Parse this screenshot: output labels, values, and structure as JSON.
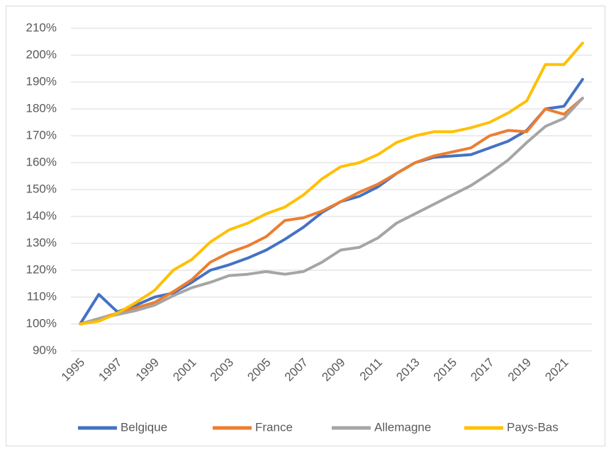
{
  "chart_data": {
    "type": "line",
    "categories": [
      "1995",
      null,
      "1997",
      null,
      "1999",
      null,
      "2001",
      null,
      "2003",
      null,
      "2005",
      null,
      "2007",
      null,
      "2009",
      null,
      "2011",
      null,
      "2013",
      null,
      "2015",
      null,
      "2017",
      null,
      "2019",
      null,
      "2021",
      null
    ],
    "series": [
      {
        "name": "Belgique",
        "color": "#4472c4",
        "values": [
          100,
          111,
          104.5,
          107,
          110,
          111.5,
          115.5,
          120,
          122,
          124.5,
          127.5,
          131.5,
          136,
          141.5,
          145.5,
          147.5,
          151,
          156,
          160,
          162,
          162.5,
          163,
          165.5,
          168,
          172,
          180,
          181,
          191
        ]
      },
      {
        "name": "France",
        "color": "#ed7d31",
        "values": [
          100,
          102,
          104,
          106,
          108,
          112,
          116.5,
          123,
          126.5,
          129,
          132.5,
          138.5,
          139.5,
          142,
          145.5,
          149,
          152,
          156,
          160,
          162.5,
          164,
          165.5,
          170,
          172,
          171.5,
          180,
          178,
          184
        ]
      },
      {
        "name": "Allemagne",
        "color": "#a5a5a5",
        "values": [
          100,
          102,
          103.5,
          105,
          107,
          110.5,
          113.5,
          115.5,
          118,
          118.5,
          119.5,
          118.5,
          119.5,
          123,
          127.5,
          128.5,
          132,
          137.5,
          141,
          144.5,
          148,
          151.5,
          156,
          161,
          167.5,
          173.5,
          176.5,
          184
        ]
      },
      {
        "name": "Pays-Bas",
        "color": "#ffc000",
        "values": [
          100,
          101,
          104,
          108,
          112.5,
          120,
          124,
          130.5,
          135,
          137.5,
          141,
          143.5,
          148,
          154,
          158.5,
          160,
          163,
          167.5,
          170,
          171.5,
          171.5,
          173,
          175,
          178.5,
          183,
          196.5,
          196.5,
          204.5
        ]
      }
    ],
    "ylim": [
      90,
      210
    ],
    "yticks": [
      {
        "value": 90,
        "label": "90%"
      },
      {
        "value": 100,
        "label": "100%"
      },
      {
        "value": 110,
        "label": "110%"
      },
      {
        "value": 120,
        "label": "120%"
      },
      {
        "value": 130,
        "label": "130%"
      },
      {
        "value": 140,
        "label": "140%"
      },
      {
        "value": 150,
        "label": "150%"
      },
      {
        "value": 160,
        "label": "160%"
      },
      {
        "value": 170,
        "label": "170%"
      },
      {
        "value": 180,
        "label": "180%"
      },
      {
        "value": 190,
        "label": "190%"
      },
      {
        "value": 200,
        "label": "200%"
      },
      {
        "value": 210,
        "label": "210%"
      }
    ],
    "grid": true,
    "legend": "bottom"
  }
}
